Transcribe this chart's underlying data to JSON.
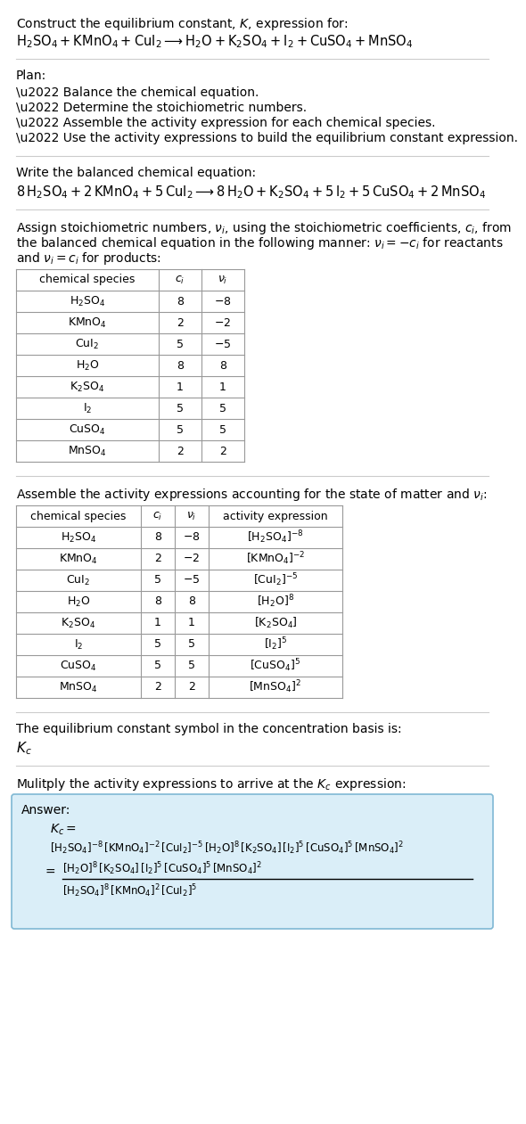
{
  "title_line1": "Construct the equilibrium constant, $K$, expression for:",
  "title_line2": "$\\mathrm{H_2SO_4 + KMnO_4 + CuI_2 \\longrightarrow H_2O + K_2SO_4 + I_2 + CuSO_4 + MnSO_4}$",
  "plan_header": "Plan:",
  "plan_items": [
    "\\u2022 Balance the chemical equation.",
    "\\u2022 Determine the stoichiometric numbers.",
    "\\u2022 Assemble the activity expression for each chemical species.",
    "\\u2022 Use the activity expressions to build the equilibrium constant expression."
  ],
  "balanced_header": "Write the balanced chemical equation:",
  "balanced_eq": "$\\mathrm{8\\,H_2SO_4 + 2\\,KMnO_4 + 5\\,CuI_2 \\longrightarrow 8\\,H_2O + K_2SO_4 + 5\\,I_2 + 5\\,CuSO_4 + 2\\,MnSO_4}$",
  "stoich_header_l1": "Assign stoichiometric numbers, $\\nu_i$, using the stoichiometric coefficients, $c_i$, from",
  "stoich_header_l2": "the balanced chemical equation in the following manner: $\\nu_i = -c_i$ for reactants",
  "stoich_header_l3": "and $\\nu_i = c_i$ for products:",
  "table1_headers": [
    "chemical species",
    "$c_i$",
    "$\\nu_i$"
  ],
  "table1_data": [
    [
      "$\\mathrm{H_2SO_4}$",
      "8",
      "$-8$"
    ],
    [
      "$\\mathrm{KMnO_4}$",
      "2",
      "$-2$"
    ],
    [
      "$\\mathrm{CuI_2}$",
      "5",
      "$-5$"
    ],
    [
      "$\\mathrm{H_2O}$",
      "8",
      "8"
    ],
    [
      "$\\mathrm{K_2SO_4}$",
      "1",
      "1"
    ],
    [
      "$\\mathrm{I_2}$",
      "5",
      "5"
    ],
    [
      "$\\mathrm{CuSO_4}$",
      "5",
      "5"
    ],
    [
      "$\\mathrm{MnSO_4}$",
      "2",
      "2"
    ]
  ],
  "activity_header": "Assemble the activity expressions accounting for the state of matter and $\\nu_i$:",
  "table2_headers": [
    "chemical species",
    "$c_i$",
    "$\\nu_i$",
    "activity expression"
  ],
  "table2_data": [
    [
      "$\\mathrm{H_2SO_4}$",
      "8",
      "$-8$",
      "$[\\mathrm{H_2SO_4}]^{-8}$"
    ],
    [
      "$\\mathrm{KMnO_4}$",
      "2",
      "$-2$",
      "$[\\mathrm{KMnO_4}]^{-2}$"
    ],
    [
      "$\\mathrm{CuI_2}$",
      "5",
      "$-5$",
      "$[\\mathrm{CuI_2}]^{-5}$"
    ],
    [
      "$\\mathrm{H_2O}$",
      "8",
      "8",
      "$[\\mathrm{H_2O}]^{8}$"
    ],
    [
      "$\\mathrm{K_2SO_4}$",
      "1",
      "1",
      "$[\\mathrm{K_2SO_4}]$"
    ],
    [
      "$\\mathrm{I_2}$",
      "5",
      "5",
      "$[\\mathrm{I_2}]^{5}$"
    ],
    [
      "$\\mathrm{CuSO_4}$",
      "5",
      "5",
      "$[\\mathrm{CuSO_4}]^{5}$"
    ],
    [
      "$\\mathrm{MnSO_4}$",
      "2",
      "2",
      "$[\\mathrm{MnSO_4}]^{2}$"
    ]
  ],
  "kc_text": "The equilibrium constant symbol in the concentration basis is:",
  "kc_symbol": "$K_c$",
  "multiply_header": "Mulitply the activity expressions to arrive at the $K_c$ expression:",
  "answer_label": "Answer:",
  "bg_color": "#ffffff",
  "table_border_color": "#999999",
  "answer_box_color": "#daeef8",
  "answer_box_border": "#7fb8d4",
  "text_color": "#000000",
  "separator_color": "#cccccc"
}
